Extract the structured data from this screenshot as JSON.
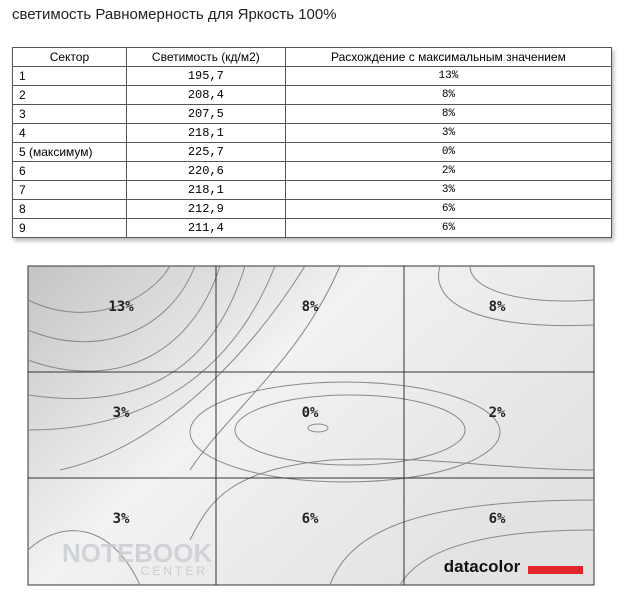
{
  "title": "светимость Равномерность для Яркость 100%",
  "table": {
    "header": [
      "Сектор",
      "Светимость (кд/м2)",
      "Расхождение с максимальным значением"
    ],
    "rows": [
      [
        "1",
        "195,7",
        "13%"
      ],
      [
        "2",
        "208,4",
        "8%"
      ],
      [
        "3",
        "207,5",
        "8%"
      ],
      [
        "4",
        "218,1",
        "3%"
      ],
      [
        "5 (максимум)",
        "225,7",
        "0%"
      ],
      [
        "6",
        "220,6",
        "2%"
      ],
      [
        "7",
        "218,1",
        "3%"
      ],
      [
        "8",
        "212,9",
        "6%"
      ],
      [
        "9",
        "211,4",
        "6%"
      ]
    ]
  },
  "map": {
    "cells": [
      "13%",
      "8%",
      "8%",
      "3%",
      "0%",
      "2%",
      "3%",
      "6%",
      "6%"
    ],
    "logo": "datacolor"
  },
  "watermark": [
    "NOTEBOOK",
    "CENTER"
  ]
}
